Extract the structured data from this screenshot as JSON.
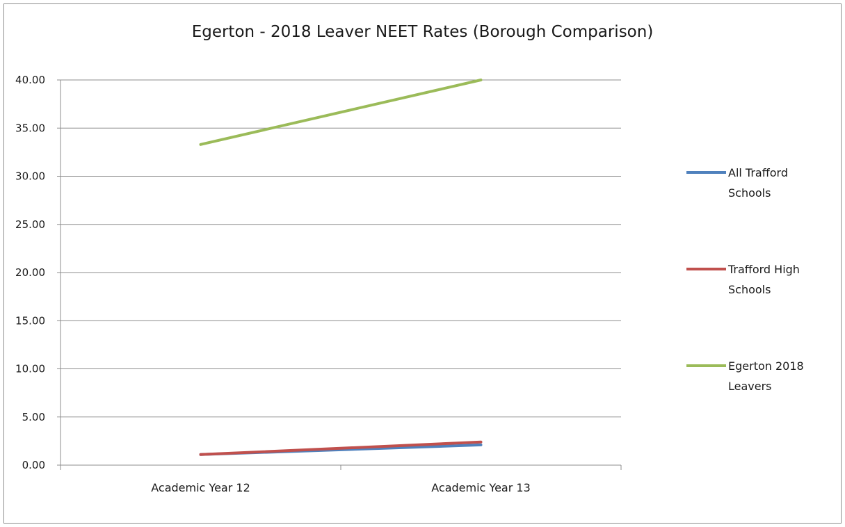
{
  "chart_data": {
    "type": "line",
    "title": "Egerton - 2018 Leaver NEET Rates (Borough Comparison)",
    "xlabel": "",
    "ylabel": "",
    "categories": [
      "Academic Year 12",
      "Academic Year 13"
    ],
    "ylim": [
      0,
      40
    ],
    "yticks": [
      "0.00",
      "5.00",
      "10.00",
      "15.00",
      "20.00",
      "25.00",
      "30.00",
      "35.00",
      "40.00"
    ],
    "grid": true,
    "legend_position": "right",
    "series": [
      {
        "name": "All Trafford Schools",
        "legend_lines": [
          "All Trafford",
          "Schools"
        ],
        "values": [
          1.1,
          2.1
        ],
        "color": "#4f81bd"
      },
      {
        "name": "Trafford High Schools",
        "legend_lines": [
          "Trafford High",
          "Schools"
        ],
        "values": [
          1.1,
          2.4
        ],
        "color": "#c0504d"
      },
      {
        "name": "Egerton 2018 Leavers",
        "legend_lines": [
          "Egerton 2018",
          "Leavers"
        ],
        "values": [
          33.3,
          40.0
        ],
        "color": "#9bbb59"
      }
    ]
  }
}
